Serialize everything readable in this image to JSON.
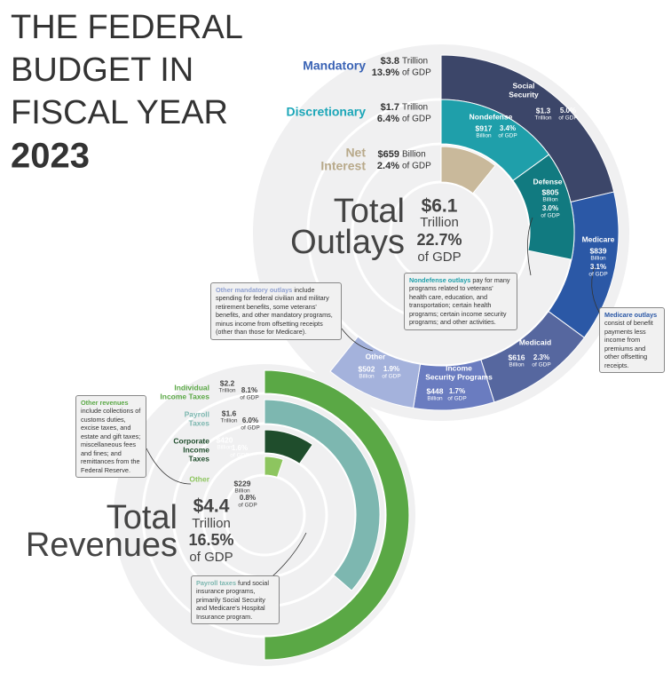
{
  "header": {
    "title_lines": [
      "THE FEDERAL",
      "BUDGET IN",
      "FISCAL YEAR"
    ],
    "year": "2023"
  },
  "outlays": {
    "total": {
      "label_lines": [
        "Total",
        "Outlays"
      ],
      "amount": "$6.1",
      "unit": "Trillion",
      "gdp": "22.7%",
      "gdp_label": "of GDP",
      "value": 6100
    },
    "groups": [
      {
        "name_lines": [
          "Mandatory"
        ],
        "amount": "$3.8",
        "unit": "Trillion",
        "gdp": "13.9%",
        "gdp_label": "of GDP",
        "color": "#3a63b5"
      },
      {
        "name_lines": [
          "Discretionary"
        ],
        "amount": "$1.7",
        "unit": "Trillion",
        "gdp": "6.4%",
        "gdp_label": "of GDP",
        "color": "#1ba6b8"
      },
      {
        "name_lines": [
          "Net",
          "Interest"
        ],
        "amount": "$659",
        "unit": "Billion",
        "gdp": "2.4%",
        "gdp_label": "of GDP",
        "color": "#b8a98a"
      }
    ],
    "rings": [
      [
        {
          "name_lines": [
            "Social",
            "Security"
          ],
          "amount": "$1.3",
          "unit": "Trillion",
          "gdp": "5.0%",
          "gdp_label": "of GDP",
          "value": 1300,
          "color": "#3c4669"
        },
        {
          "name_lines": [
            "Medicare"
          ],
          "amount": "$839",
          "unit": "Billion",
          "gdp": "3.1%",
          "gdp_label": "of GDP",
          "value": 839,
          "color": "#2b58a6"
        },
        {
          "name_lines": [
            "Medicaid"
          ],
          "amount": "$616",
          "unit": "Billion",
          "gdp": "2.3%",
          "gdp_label": "of GDP",
          "value": 616,
          "color": "#56679f"
        },
        {
          "name_lines": [
            "Income",
            "Security Programs"
          ],
          "amount": "$448",
          "unit": "Billion",
          "gdp": "1.7%",
          "gdp_label": "of GDP",
          "value": 448,
          "color": "#6a7cc0"
        },
        {
          "name_lines": [
            "Other"
          ],
          "amount": "$502",
          "unit": "Billion",
          "gdp": "1.9%",
          "gdp_label": "of GDP",
          "value": 502,
          "color": "#a4b2dc"
        }
      ],
      [
        {
          "name_lines": [
            "Nondefense"
          ],
          "amount": "$917",
          "unit": "Billion",
          "gdp": "3.4%",
          "gdp_label": "of GDP",
          "value": 917,
          "color": "#1f9faa"
        },
        {
          "name_lines": [
            "Defense"
          ],
          "amount": "$805",
          "unit": "Billion",
          "gdp": "3.0%",
          "gdp_label": "of GDP",
          "value": 805,
          "color": "#117a80"
        }
      ],
      [
        {
          "value": 659,
          "color": "#c9b99b"
        }
      ]
    ],
    "notes": [
      {
        "lead": "Other mandatory outlays",
        "text": " include spending for federal civilian and military retirement benefits, some veterans' benefits, and other mandatory programs, minus income from offsetting receipts (other than those for Medicare)."
      },
      {
        "lead": "Nondefense outlays",
        "text": " pay for many programs related to veterans' health care, education, and transportation; certain health programs; certain income security programs; and other activities."
      },
      {
        "lead": "Medicare outlays",
        "text": " consist of benefit payments less income from premiums and other offsetting receipts."
      }
    ]
  },
  "revenues": {
    "total": {
      "label_lines": [
        "Total",
        "Revenues"
      ],
      "amount": "$4.4",
      "unit": "Trillion",
      "gdp": "16.5%",
      "gdp_label": "of GDP",
      "value": 4400
    },
    "rings": [
      [
        {
          "name_lines": [
            "Individual",
            "Income Taxes"
          ],
          "amount": "$2.2",
          "unit": "Trillion",
          "gdp": "8.1%",
          "gdp_label": "of GDP",
          "value": 2200,
          "color": "#5aa845"
        }
      ],
      [
        {
          "name_lines": [
            "Payroll",
            "Taxes"
          ],
          "amount": "$1.6",
          "unit": "Trillion",
          "gdp": "6.0%",
          "gdp_label": "of GDP",
          "value": 1600,
          "color": "#7db7b0"
        }
      ],
      [
        {
          "name_lines": [
            "Corporate",
            "Income",
            "Taxes"
          ],
          "amount": "$420",
          "unit": "Billion",
          "gdp": "1.6%",
          "gdp_label": "of GDP",
          "value": 420,
          "color": "#1f4d2c"
        }
      ],
      [
        {
          "name_lines": [
            "Other"
          ],
          "amount": "$229",
          "unit": "Billion",
          "gdp": "0.8%",
          "gdp_label": "of GDP",
          "value": 229,
          "color": "#8dc55f"
        }
      ]
    ],
    "notes": [
      {
        "lead": "Other revenues",
        "text": " include collections of customs duties, excise taxes, and estate and gift taxes; miscellaneous fees and fines; and remittances from the Federal Reserve."
      },
      {
        "lead": "Payroll taxes",
        "text": " fund social insurance programs, primarily Social Security and Medicare's Hospital Insurance program."
      }
    ]
  }
}
